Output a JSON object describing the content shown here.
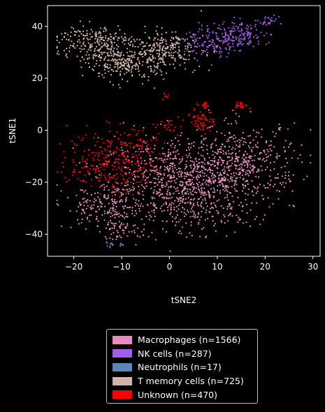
{
  "chart_data": {
    "type": "scatter",
    "title": "",
    "xlabel": "tSNE2",
    "ylabel": "tSNE1",
    "xlim": [
      -25.5,
      31.5
    ],
    "ylim": [
      -48.5,
      48
    ],
    "xticks": [
      -20,
      -10,
      0,
      10,
      20,
      30
    ],
    "yticks": [
      -40,
      -20,
      0,
      20,
      40
    ],
    "grid": false,
    "legend_placement": "below",
    "background": "#000000",
    "series": [
      {
        "name": "Macrophages (n=1566)",
        "count": 1566,
        "color": "#e88dbb",
        "clusters": [
          {
            "cx": 3,
            "cy": -20,
            "sx": 8.5,
            "sy": 8,
            "n": 900
          },
          {
            "cx": 15,
            "cy": -12,
            "sx": 6,
            "sy": 7,
            "n": 380
          },
          {
            "cx": -14,
            "cy": -30,
            "sx": 4,
            "sy": 4,
            "n": 160
          },
          {
            "cx": -10,
            "cy": -38,
            "sx": 3,
            "sy": 2,
            "n": 60
          },
          {
            "cx": 7,
            "cy": -32,
            "sx": 5,
            "sy": 4,
            "n": 66
          }
        ]
      },
      {
        "name": "NK cells (n=287)",
        "count": 287,
        "color": "#a35ced",
        "clusters": [
          {
            "cx": 10,
            "cy": 34,
            "sx": 3.5,
            "sy": 3,
            "n": 150
          },
          {
            "cx": 15,
            "cy": 37,
            "sx": 3,
            "sy": 2.5,
            "n": 110
          },
          {
            "cx": 20,
            "cy": 42,
            "sx": 1.5,
            "sy": 1,
            "n": 27
          }
        ]
      },
      {
        "name": "Neutrophils (n=17)",
        "count": 17,
        "color": "#5b86b8",
        "clusters": [
          {
            "cx": -12.5,
            "cy": -44,
            "sx": 0.6,
            "sy": 0.4,
            "n": 11
          },
          {
            "cx": -10,
            "cy": -44,
            "sx": 0.4,
            "sy": 0.3,
            "n": 6
          }
        ]
      },
      {
        "name": "T memory cells (n=725)",
        "count": 725,
        "color": "#d3b4ab",
        "clusters": [
          {
            "cx": -16,
            "cy": 34,
            "sx": 4,
            "sy": 3.5,
            "n": 230
          },
          {
            "cx": -9,
            "cy": 26,
            "sx": 4,
            "sy": 3.5,
            "n": 260
          },
          {
            "cx": -1,
            "cy": 31,
            "sx": 4,
            "sy": 3.5,
            "n": 235
          }
        ]
      },
      {
        "name": "Unknown (n=470)",
        "count": 470,
        "color": "#ff0000",
        "clusters": [
          {
            "cx": -12,
            "cy": -12,
            "sx": 4.5,
            "sy": 6,
            "n": 300
          },
          {
            "cx": 7,
            "cy": 4,
            "sx": 1.2,
            "sy": 2.5,
            "n": 70
          },
          {
            "cx": 15,
            "cy": 9.5,
            "sx": 0.8,
            "sy": 0.6,
            "n": 25
          },
          {
            "cx": 7.5,
            "cy": 10,
            "sx": 0.6,
            "sy": 0.6,
            "n": 15
          },
          {
            "cx": -0.5,
            "cy": 13,
            "sx": 0.4,
            "sy": 0.6,
            "n": 8
          },
          {
            "cx": 0,
            "cy": 2,
            "sx": 1.5,
            "sy": 1.5,
            "n": 20
          },
          {
            "cx": -5,
            "cy": -5,
            "sx": 4,
            "sy": 4,
            "n": 32
          }
        ]
      }
    ]
  }
}
